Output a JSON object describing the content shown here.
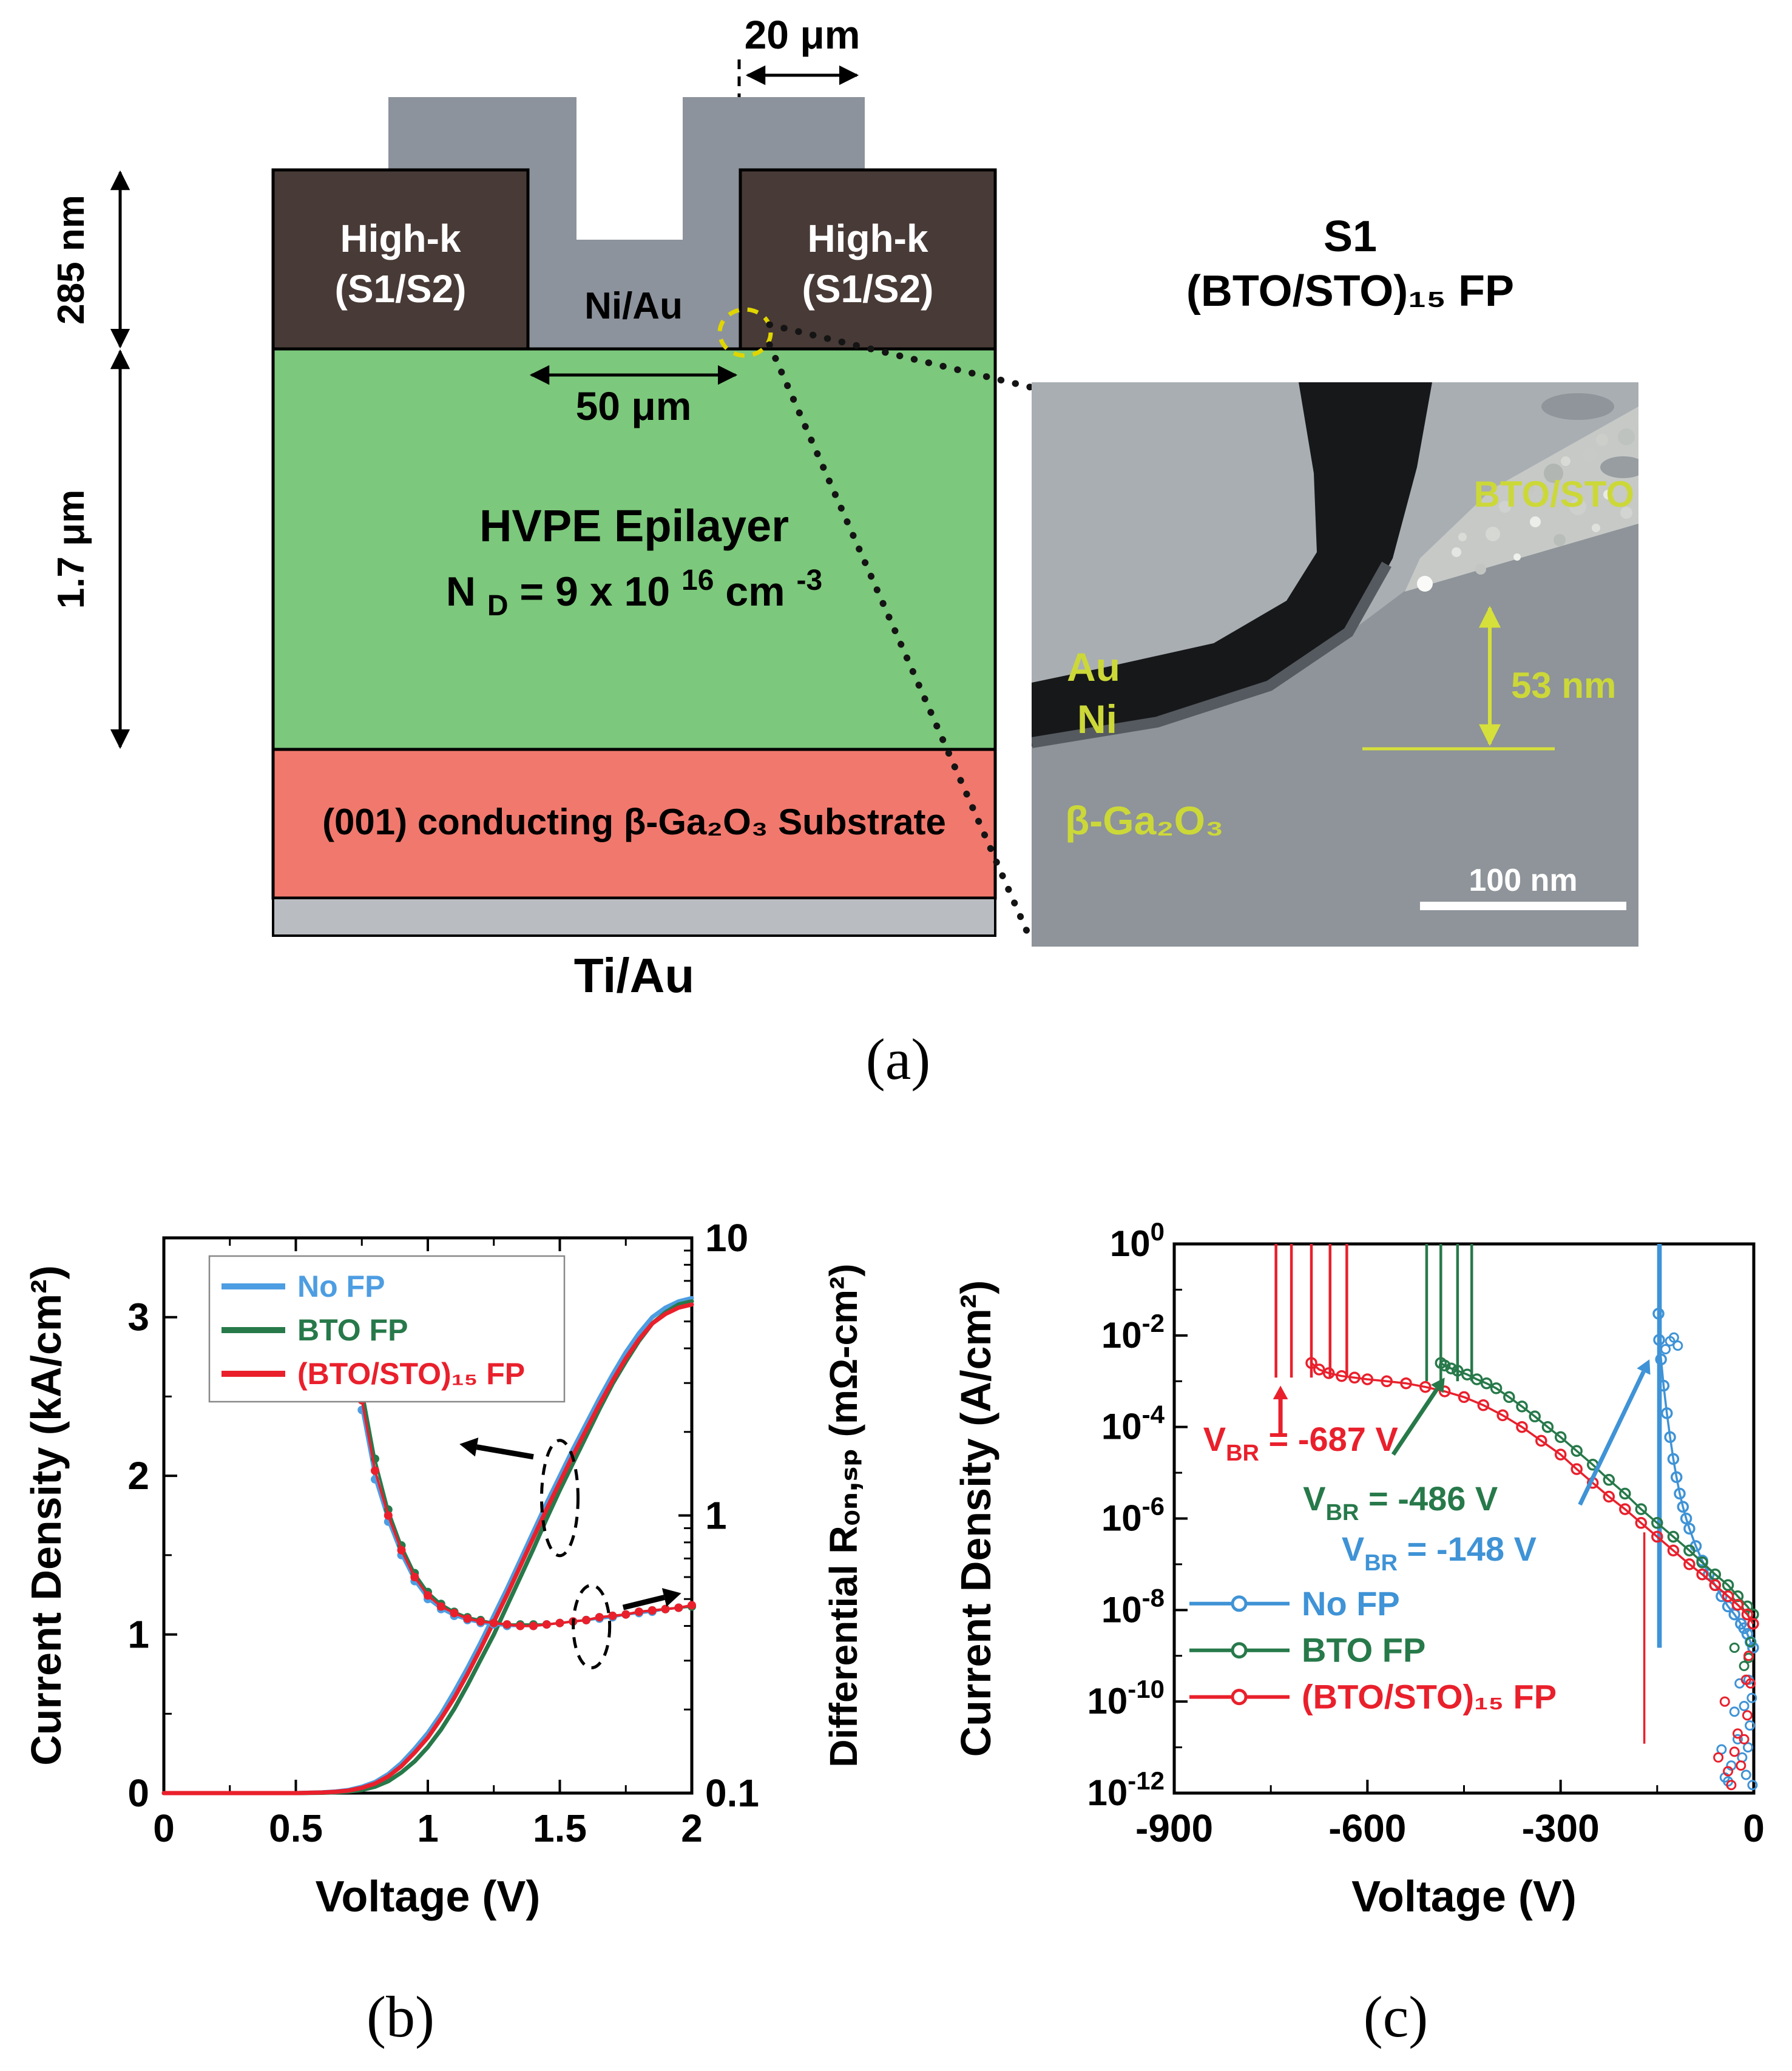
{
  "schematic": {
    "dim_20um": "20 μm",
    "dim_285nm": "285 nm",
    "dim_50um": "50 μm",
    "dim_17um": "1.7 μm",
    "highk_line1": "High-k",
    "highk_line2": "(S1/S2)",
    "anode_label": "Ni/Au",
    "epilayer_line1": "HVPE Epilayer",
    "nd": {
      "pre": "N",
      "sub": "D",
      "mid": " = 9 x 10",
      "sup": "16",
      "unit": " cm",
      "unit_sup": "-3"
    },
    "substrate_label": "(001) conducting β-Ga₂O₃ Substrate",
    "cathode_label": "Ti/Au",
    "colors": {
      "anode": "#8d939c",
      "highk": "#483a36",
      "epilayer": "#7cc87c",
      "substrate": "#f1786d",
      "backmetal": "#b9bdc2",
      "highlight_circle": "#e0d500"
    }
  },
  "tem": {
    "title_line1": "S1",
    "title_line2": "(BTO/STO)₁₅ FP",
    "label_film": "BTO/STO",
    "label_au": "Au",
    "label_ni": "Ni",
    "label_substrate": "β-Ga₂O₃",
    "dim_53nm": "53 nm",
    "scalebar_label": "100 nm",
    "label_color": "#ccd838"
  },
  "labels": {
    "a": "(a)",
    "b": "(b)",
    "c": "(c)"
  },
  "chart_data": [
    {
      "id": "forward-jv-ron",
      "type": "line",
      "title": "",
      "xlabel": "Voltage (V)",
      "ylabel_left": "Current Density (kA/cm²)",
      "ylabel_right": "Differential Rₒₙ,ₛₚ (mΩ-cm²)",
      "xlim": [
        0,
        2
      ],
      "xticks": [
        0,
        0.5,
        1,
        1.5,
        2
      ],
      "xtick_labels": [
        "0",
        "0.5",
        "1",
        "1.5",
        "2"
      ],
      "x_minor_step": 0.25,
      "ylim_left": [
        0,
        3.5
      ],
      "yticks_left": [
        0,
        1,
        2,
        3
      ],
      "ylim_right_log": [
        0.1,
        10
      ],
      "yticks_right": [
        0.1,
        1,
        10
      ],
      "ytick_right_labels": [
        "0.1",
        "1",
        "10"
      ],
      "legend": {
        "position": "top-left",
        "items": [
          {
            "label": "No FP",
            "color": "#4d9de2"
          },
          {
            "label": "BTO FP",
            "color": "#27794a"
          },
          {
            "label": "(BTO/STO)₁₅ FP",
            "color": "#e9202c"
          }
        ]
      },
      "series": [
        {
          "name": "No FP J-V",
          "color": "#4d9de2",
          "axis": "left",
          "marker": false,
          "x": [
            0,
            0.3,
            0.5,
            0.6,
            0.65,
            0.7,
            0.75,
            0.8,
            0.85,
            0.9,
            0.95,
            1.0,
            1.05,
            1.1,
            1.15,
            1.2,
            1.25,
            1.3,
            1.35,
            1.4,
            1.45,
            1.5,
            1.55,
            1.6,
            1.65,
            1.7,
            1.75,
            1.8,
            1.85,
            1.9,
            1.95,
            2.0
          ],
          "y": [
            0,
            0,
            0,
            0.005,
            0.01,
            0.02,
            0.04,
            0.07,
            0.12,
            0.19,
            0.28,
            0.38,
            0.5,
            0.64,
            0.79,
            0.95,
            1.12,
            1.29,
            1.47,
            1.65,
            1.83,
            2.0,
            2.17,
            2.33,
            2.49,
            2.64,
            2.78,
            2.9,
            3.0,
            3.06,
            3.1,
            3.12
          ]
        },
        {
          "name": "BTO FP J-V",
          "color": "#27794a",
          "axis": "left",
          "marker": false,
          "x": [
            0,
            0.3,
            0.5,
            0.6,
            0.65,
            0.7,
            0.75,
            0.8,
            0.85,
            0.9,
            0.95,
            1.0,
            1.05,
            1.1,
            1.15,
            1.2,
            1.25,
            1.3,
            1.35,
            1.4,
            1.45,
            1.5,
            1.55,
            1.6,
            1.65,
            1.7,
            1.75,
            1.8,
            1.85,
            1.9,
            1.95,
            2.0
          ],
          "y": [
            0,
            0,
            0,
            0.002,
            0.005,
            0.01,
            0.02,
            0.04,
            0.075,
            0.13,
            0.2,
            0.29,
            0.4,
            0.53,
            0.68,
            0.84,
            1.0,
            1.18,
            1.36,
            1.54,
            1.73,
            1.91,
            2.08,
            2.25,
            2.42,
            2.58,
            2.72,
            2.85,
            2.96,
            3.03,
            3.08,
            3.1
          ]
        },
        {
          "name": "(BTO/STO)15 FP J-V",
          "color": "#e9202c",
          "axis": "left",
          "marker": false,
          "x": [
            0,
            0.3,
            0.5,
            0.6,
            0.65,
            0.7,
            0.75,
            0.8,
            0.85,
            0.9,
            0.95,
            1.0,
            1.05,
            1.1,
            1.15,
            1.2,
            1.25,
            1.3,
            1.35,
            1.4,
            1.45,
            1.5,
            1.55,
            1.6,
            1.65,
            1.7,
            1.75,
            1.8,
            1.85,
            1.9,
            1.95,
            2.0
          ],
          "y": [
            0,
            0,
            0,
            0.004,
            0.008,
            0.016,
            0.033,
            0.06,
            0.105,
            0.17,
            0.255,
            0.35,
            0.47,
            0.6,
            0.75,
            0.91,
            1.08,
            1.25,
            1.43,
            1.61,
            1.79,
            1.96,
            2.13,
            2.29,
            2.45,
            2.6,
            2.74,
            2.86,
            2.96,
            3.02,
            3.06,
            3.08
          ]
        },
        {
          "name": "No FP Ron",
          "color": "#4d9de2",
          "axis": "right",
          "marker": true,
          "x": [
            0.75,
            0.8,
            0.85,
            0.9,
            0.95,
            1.0,
            1.05,
            1.1,
            1.15,
            1.2,
            1.25,
            1.3,
            1.35,
            1.4,
            1.45,
            1.5,
            1.55,
            1.6,
            1.65,
            1.7,
            1.75,
            1.8,
            1.85,
            1.9,
            1.95,
            2.0
          ],
          "y": [
            2.4,
            1.35,
            0.95,
            0.72,
            0.58,
            0.5,
            0.46,
            0.435,
            0.42,
            0.41,
            0.405,
            0.4,
            0.4,
            0.4,
            0.405,
            0.41,
            0.415,
            0.42,
            0.425,
            0.43,
            0.44,
            0.445,
            0.45,
            0.46,
            0.465,
            0.47
          ]
        },
        {
          "name": "BTO FP Ron",
          "color": "#27794a",
          "axis": "right",
          "marker": true,
          "x": [
            0.75,
            0.8,
            0.85,
            0.9,
            0.95,
            1.0,
            1.05,
            1.1,
            1.15,
            1.2,
            1.25,
            1.3,
            1.35,
            1.4,
            1.45,
            1.5,
            1.55,
            1.6,
            1.65,
            1.7,
            1.75,
            1.8,
            1.85,
            1.9,
            1.95,
            2.0
          ],
          "y": [
            2.9,
            1.6,
            1.05,
            0.78,
            0.62,
            0.53,
            0.48,
            0.45,
            0.43,
            0.42,
            0.41,
            0.405,
            0.405,
            0.405,
            0.405,
            0.41,
            0.415,
            0.42,
            0.43,
            0.435,
            0.44,
            0.45,
            0.455,
            0.46,
            0.465,
            0.47
          ]
        },
        {
          "name": "(BTO/STO)15 FP Ron",
          "color": "#e9202c",
          "axis": "right",
          "marker": true,
          "x": [
            0.75,
            0.8,
            0.85,
            0.9,
            0.95,
            1.0,
            1.05,
            1.1,
            1.15,
            1.2,
            1.25,
            1.3,
            1.35,
            1.4,
            1.45,
            1.5,
            1.55,
            1.6,
            1.65,
            1.7,
            1.75,
            1.8,
            1.85,
            1.9,
            1.95,
            2.0
          ],
          "y": [
            2.6,
            1.45,
            1.0,
            0.75,
            0.6,
            0.515,
            0.47,
            0.445,
            0.425,
            0.415,
            0.41,
            0.405,
            0.4,
            0.4,
            0.405,
            0.41,
            0.415,
            0.42,
            0.43,
            0.435,
            0.44,
            0.45,
            0.455,
            0.46,
            0.465,
            0.475
          ]
        }
      ],
      "annotations": {
        "jv_ellipse": [
          1.5,
          1.86
        ],
        "jv_arrow": {
          "from": [
            1.4,
            2.12
          ],
          "to": [
            1.12,
            2.2
          ]
        },
        "ron_ellipse": [
          1.62,
          1.05
        ],
        "ron_arrow": {
          "from": [
            1.74,
            1.17
          ],
          "to": [
            1.96,
            1.26
          ]
        }
      }
    },
    {
      "id": "reverse-breakdown",
      "type": "line",
      "title": "",
      "xlabel": "Voltage (V)",
      "ylabel": "Current Density (A/cm²)",
      "xlim": [
        -900,
        0
      ],
      "xticks": [
        -900,
        -600,
        -300,
        0
      ],
      "xtick_labels": [
        "-900",
        "-600",
        "-300",
        "0"
      ],
      "x_minor_step": 150,
      "y_log_exponent_range": [
        -12,
        0
      ],
      "ytick_exponents": [
        0,
        -2,
        -4,
        -6,
        -8,
        -10,
        -12
      ],
      "legend": {
        "position": "bottom-left",
        "items": [
          {
            "label": "No FP",
            "color": "#3f93d6"
          },
          {
            "label": "BTO FP",
            "color": "#27794a"
          },
          {
            "label": "(BTO/STO)₁₅ FP",
            "color": "#e9202c"
          }
        ]
      },
      "series": [
        {
          "name": "No FP",
          "color": "#3f93d6",
          "vbr": -148,
          "x": [
            -1,
            -5,
            -10,
            -15,
            -20,
            -30,
            -40,
            -50,
            -60,
            -70,
            -80,
            -90,
            -100,
            -105,
            -110,
            -115,
            -120,
            -125,
            -130,
            -135,
            -140,
            -144,
            -147,
            -148
          ],
          "y": [
            1.5e-09,
            2e-09,
            3e-09,
            4e-09,
            5e-09,
            8e-09,
            1.2e-08,
            2e-08,
            3.5e-08,
            6e-08,
            1.2e-07,
            2.5e-07,
            6e-07,
            1e-06,
            1.8e-06,
            3.5e-06,
            8e-06,
            2e-05,
            6e-05,
            0.0002,
            0.0008,
            0.003,
            0.008,
            0.03
          ],
          "spikes": [
            -145,
            -148
          ],
          "spike_from": 1.5e-09,
          "scatter": [
            [
              -3,
              1.2e-10
            ],
            [
              -6,
              3e-11
            ],
            [
              -9,
              1e-11
            ],
            [
              -12,
              2.5e-12
            ],
            [
              -18,
              6e-12
            ],
            [
              -25,
              1.5e-11
            ],
            [
              -35,
              4e-12
            ],
            [
              -45,
              2.2e-12
            ],
            [
              -8,
              3e-10
            ],
            [
              -15,
              8e-11
            ],
            [
              -22,
              2.5e-10
            ],
            [
              -30,
              6e-11
            ],
            [
              -50,
              9e-12
            ],
            [
              -2,
              1.5e-12
            ],
            [
              -40,
              1.8e-12
            ],
            [
              -137,
              0.005
            ],
            [
              -130,
              0.0075
            ],
            [
              -124,
              0.009
            ],
            [
              -118,
              0.006
            ]
          ]
        },
        {
          "name": "BTO FP",
          "color": "#27794a",
          "vbr": -486,
          "x": [
            -1,
            -10,
            -25,
            -40,
            -60,
            -80,
            -100,
            -125,
            -150,
            -175,
            -200,
            -225,
            -250,
            -275,
            -300,
            -320,
            -340,
            -360,
            -380,
            -400,
            -415,
            -430,
            -445,
            -460,
            -470,
            -480,
            -486
          ],
          "y": [
            8e-09,
            1.2e-08,
            2e-08,
            3.5e-08,
            6e-08,
            1.1e-07,
            2e-07,
            4e-07,
            8e-07,
            1.6e-06,
            3.5e-06,
            7e-06,
            1.5e-05,
            3e-05,
            6e-05,
            0.0001,
            0.00017,
            0.00028,
            0.00045,
            0.0007,
            0.0009,
            0.0011,
            0.0014,
            0.0017,
            0.0019,
            0.0022,
            0.0025
          ],
          "spikes": [
            -438,
            -460,
            -486,
            -508
          ],
          "spike_from": 0.001,
          "scatter": [
            [
              -5,
              2e-09
            ],
            [
              -15,
              6e-10
            ],
            [
              -30,
              1.5e-09
            ],
            [
              -8,
              9e-10
            ]
          ]
        },
        {
          "name": "(BTO/STO)15 FP",
          "color": "#e9202c",
          "vbr": -687,
          "x": [
            -1,
            -10,
            -25,
            -40,
            -60,
            -80,
            -100,
            -125,
            -150,
            -175,
            -200,
            -225,
            -250,
            -275,
            -300,
            -330,
            -360,
            -390,
            -420,
            -450,
            -480,
            -510,
            -540,
            -570,
            -600,
            -620,
            -640,
            -660,
            -675,
            -687
          ],
          "y": [
            5e-09,
            8e-09,
            1.3e-08,
            2e-08,
            3.5e-08,
            6e-08,
            1e-07,
            2e-07,
            4e-07,
            8e-07,
            1.6e-06,
            3e-06,
            6e-06,
            1.2e-05,
            2.5e-05,
            5e-05,
            0.0001,
            0.00018,
            0.0003,
            0.00045,
            0.0006,
            0.00075,
            0.0009,
            0.001,
            0.0011,
            0.0012,
            0.0013,
            0.0015,
            0.0018,
            0.0025
          ],
          "spikes": [
            -632,
            -658,
            -687,
            -718,
            -742
          ],
          "spike_from": 0.0012,
          "down_spikes": [
            {
              "x": -170,
              "from": 5e-07,
              "to": 1.2e-11
            }
          ],
          "scatter": [
            [
              -5,
              2.5e-10
            ],
            [
              -10,
              5e-11
            ],
            [
              -15,
              1.5e-11
            ],
            [
              -20,
              4e-12
            ],
            [
              -30,
              8e-12
            ],
            [
              -8,
              1e-09
            ],
            [
              -25,
              2e-11
            ],
            [
              -40,
              3e-12
            ],
            [
              -12,
              3e-10
            ],
            [
              -35,
              1.5e-12
            ],
            [
              -55,
              6e-12
            ],
            [
              -45,
              1e-10
            ]
          ]
        }
      ],
      "annotations": [
        {
          "pre": "V",
          "sub": "BR",
          "rest": " = -687 V",
          "color": "#e9202c",
          "text_at": [
            -855,
            3e-05
          ],
          "arrow": {
            "from": [
              -735,
              7e-05
            ],
            "to": [
              -735,
              0.0008
            ]
          }
        },
        {
          "pre": "V",
          "sub": "BR",
          "rest": " = -486 V",
          "color": "#27794a",
          "text_at": [
            -700,
            1.5e-06
          ],
          "arrow": {
            "from": [
              -560,
              2.5e-05
            ],
            "to": [
              -480,
              0.0012
            ]
          }
        },
        {
          "pre": "V",
          "sub": "BR",
          "rest": " = -148 V",
          "color": "#3f93d6",
          "text_at": [
            -640,
            1.2e-07
          ],
          "arrow": {
            "from": [
              -270,
              2e-06
            ],
            "to": [
              -162,
              0.003
            ]
          }
        }
      ]
    }
  ]
}
